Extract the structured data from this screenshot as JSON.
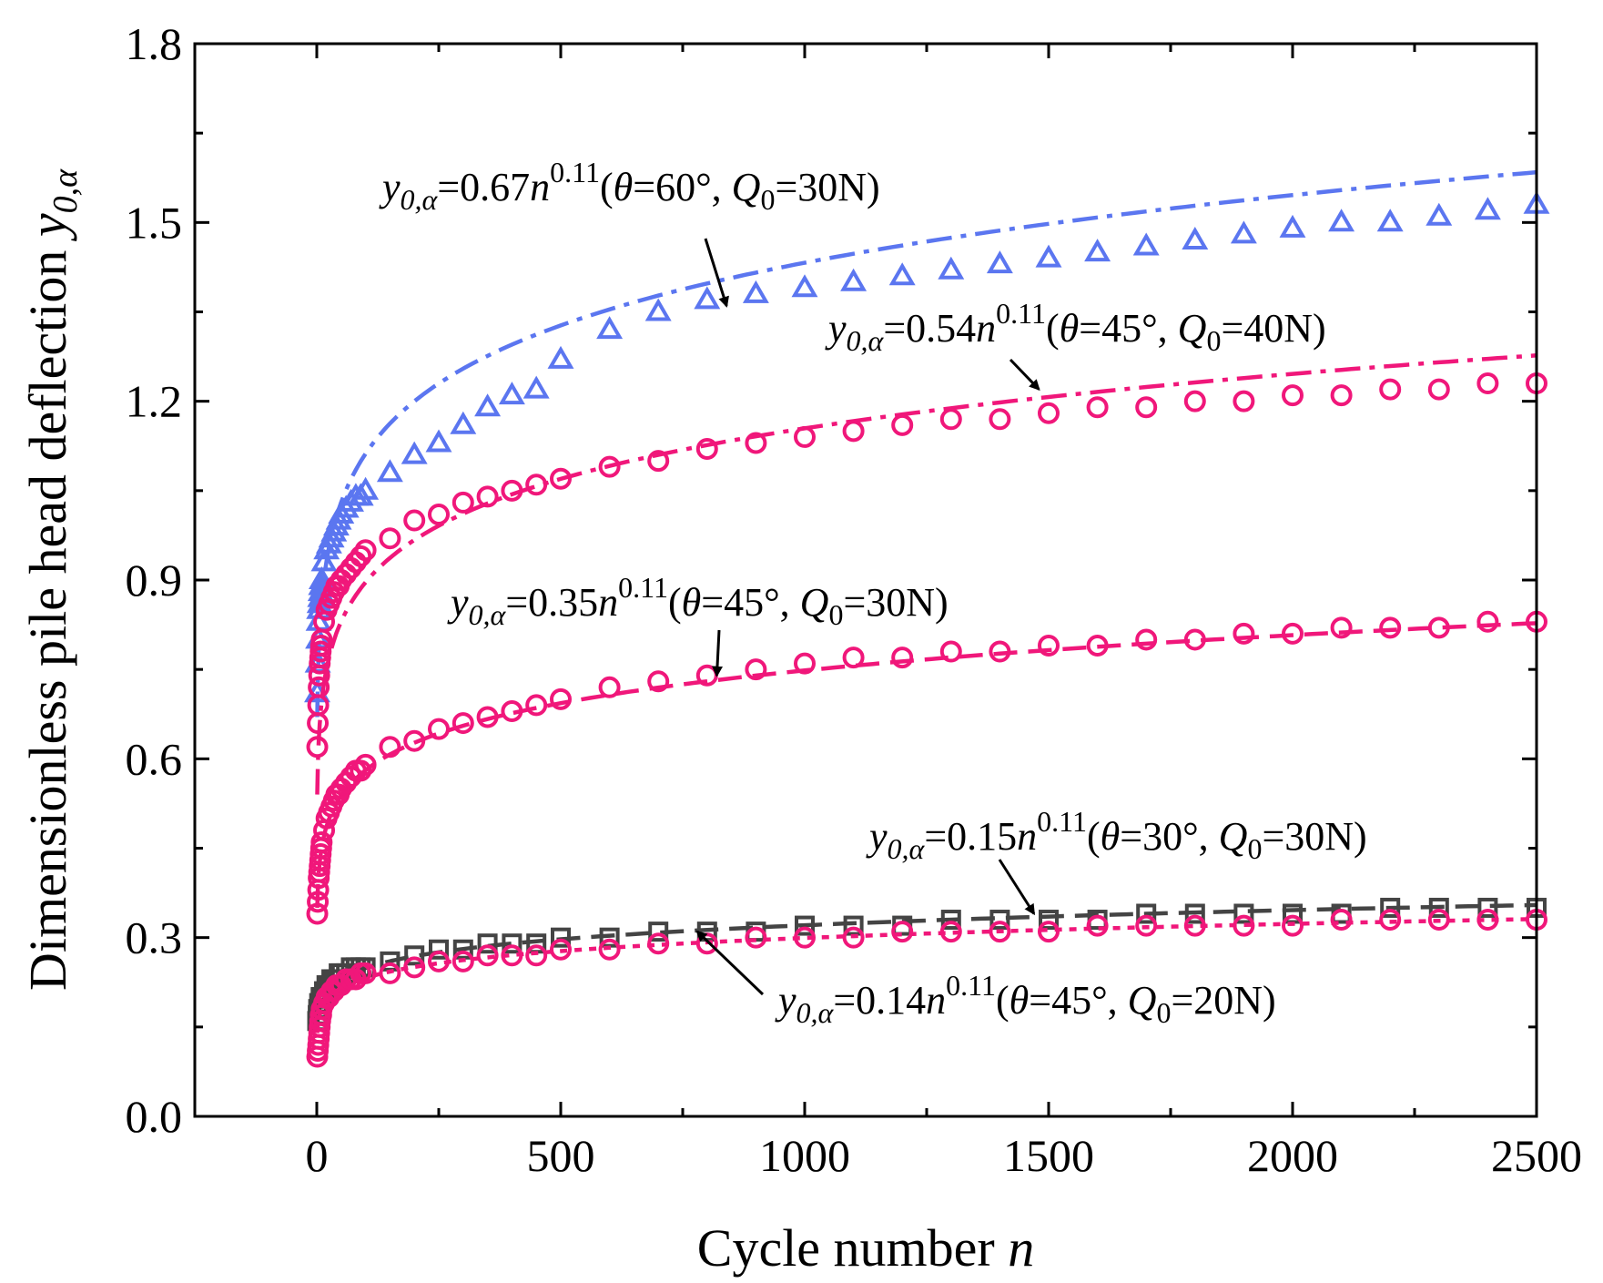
{
  "chart_data": {
    "type": "scatter",
    "title": "",
    "xlabel_text": "Cycle number ",
    "xlabel_var": "n",
    "ylabel_text": "Dimensionless pile head deflection ",
    "ylabel_var": "y",
    "ylabel_sub": "0,α",
    "xlim": [
      -250,
      2500
    ],
    "ylim": [
      0.0,
      1.8
    ],
    "xticks": [
      0,
      500,
      1000,
      1500,
      2000,
      2500
    ],
    "xtick_labels": [
      "0",
      "500",
      "1000",
      "1500",
      "2000",
      "2500"
    ],
    "yticks": [
      0.0,
      0.3,
      0.6,
      0.9,
      1.2,
      1.5,
      1.8
    ],
    "ytick_labels": [
      "0.0",
      "0.3",
      "0.6",
      "0.9",
      "1.2",
      "1.5",
      "1.8"
    ],
    "grid": false,
    "x": [
      1,
      2,
      3,
      4,
      5,
      6,
      7,
      8,
      9,
      10,
      15,
      20,
      25,
      30,
      35,
      40,
      45,
      50,
      60,
      70,
      80,
      90,
      100,
      150,
      200,
      250,
      300,
      350,
      400,
      450,
      500,
      600,
      700,
      800,
      900,
      1000,
      1100,
      1200,
      1300,
      1400,
      1500,
      1600,
      1700,
      1800,
      1900,
      2000,
      2100,
      2200,
      2300,
      2400,
      2500
    ],
    "series": [
      {
        "name": "θ=60°, Q0=30N",
        "color": "#5b76f0",
        "marker": "triangle",
        "line_style": "dash-dot",
        "fit": {
          "a": 0.67,
          "b": 0.11
        },
        "values": [
          0.71,
          0.76,
          0.8,
          0.83,
          0.85,
          0.86,
          0.87,
          0.88,
          0.89,
          0.9,
          0.93,
          0.95,
          0.96,
          0.97,
          0.98,
          0.99,
          1.0,
          1.01,
          1.02,
          1.03,
          1.04,
          1.04,
          1.05,
          1.08,
          1.11,
          1.13,
          1.16,
          1.19,
          1.21,
          1.22,
          1.27,
          1.32,
          1.35,
          1.37,
          1.38,
          1.39,
          1.4,
          1.41,
          1.42,
          1.43,
          1.44,
          1.45,
          1.46,
          1.47,
          1.48,
          1.49,
          1.5,
          1.5,
          1.51,
          1.52,
          1.53
        ]
      },
      {
        "name": "θ=45°, Q0=40N",
        "color": "#f0177a",
        "marker": "circle",
        "line_style": "dash-dot",
        "fit": {
          "a": 0.54,
          "b": 0.11
        },
        "values": [
          0.62,
          0.66,
          0.69,
          0.72,
          0.74,
          0.76,
          0.77,
          0.78,
          0.79,
          0.8,
          0.83,
          0.85,
          0.86,
          0.87,
          0.88,
          0.89,
          0.89,
          0.9,
          0.91,
          0.92,
          0.93,
          0.94,
          0.95,
          0.97,
          1.0,
          1.01,
          1.03,
          1.04,
          1.05,
          1.06,
          1.07,
          1.09,
          1.1,
          1.12,
          1.13,
          1.14,
          1.15,
          1.16,
          1.17,
          1.17,
          1.18,
          1.19,
          1.19,
          1.2,
          1.2,
          1.21,
          1.21,
          1.22,
          1.22,
          1.23,
          1.23
        ]
      },
      {
        "name": "θ=45°, Q0=30N",
        "color": "#f0177a",
        "marker": "circle",
        "line_style": "dash",
        "fit": {
          "a": 0.35,
          "b": 0.11
        },
        "values": [
          0.34,
          0.36,
          0.38,
          0.4,
          0.41,
          0.42,
          0.43,
          0.44,
          0.45,
          0.46,
          0.48,
          0.5,
          0.51,
          0.52,
          0.53,
          0.54,
          0.54,
          0.55,
          0.56,
          0.57,
          0.58,
          0.58,
          0.59,
          0.62,
          0.63,
          0.65,
          0.66,
          0.67,
          0.68,
          0.69,
          0.7,
          0.72,
          0.73,
          0.74,
          0.75,
          0.76,
          0.77,
          0.77,
          0.78,
          0.78,
          0.79,
          0.79,
          0.8,
          0.8,
          0.81,
          0.81,
          0.82,
          0.82,
          0.82,
          0.83,
          0.83
        ]
      },
      {
        "name": "θ=30°, Q0=30N",
        "color": "#444444",
        "marker": "square",
        "line_style": "dash",
        "fit": {
          "a": 0.15,
          "b": 0.11
        },
        "values": [
          0.16,
          0.17,
          0.18,
          0.18,
          0.19,
          0.19,
          0.19,
          0.2,
          0.2,
          0.2,
          0.21,
          0.22,
          0.22,
          0.23,
          0.23,
          0.23,
          0.24,
          0.24,
          0.24,
          0.25,
          0.25,
          0.25,
          0.25,
          0.26,
          0.27,
          0.28,
          0.28,
          0.29,
          0.29,
          0.29,
          0.3,
          0.3,
          0.31,
          0.31,
          0.31,
          0.32,
          0.32,
          0.32,
          0.33,
          0.33,
          0.33,
          0.33,
          0.34,
          0.34,
          0.34,
          0.34,
          0.34,
          0.35,
          0.35,
          0.35,
          0.35
        ]
      },
      {
        "name": "θ=45°, Q0=20N",
        "color": "#f0177a",
        "marker": "circle",
        "line_style": "dot",
        "fit": {
          "a": 0.14,
          "b": 0.11
        },
        "values": [
          0.1,
          0.11,
          0.12,
          0.13,
          0.14,
          0.15,
          0.16,
          0.17,
          0.17,
          0.18,
          0.19,
          0.2,
          0.2,
          0.21,
          0.21,
          0.22,
          0.22,
          0.22,
          0.23,
          0.23,
          0.23,
          0.24,
          0.24,
          0.24,
          0.25,
          0.26,
          0.26,
          0.27,
          0.27,
          0.27,
          0.28,
          0.28,
          0.29,
          0.29,
          0.3,
          0.3,
          0.3,
          0.31,
          0.31,
          0.31,
          0.31,
          0.32,
          0.32,
          0.32,
          0.32,
          0.32,
          0.33,
          0.33,
          0.33,
          0.33,
          0.33
        ]
      }
    ],
    "annotations": [
      {
        "prefix": "y",
        "sub": "0,α",
        "coef": "=0.67",
        "var": "n",
        "exp": "0.11",
        "open": "(",
        "theta": "θ",
        "angle": "=60°, ",
        "q": "Q",
        "qsub": "0",
        "load": "=30N)",
        "arrow_to": [
          840,
          1.36
        ]
      },
      {
        "prefix": "y",
        "sub": "0,α",
        "coef": "=0.54",
        "var": "n",
        "exp": "0.11",
        "open": "(",
        "theta": "θ",
        "angle": "=45°, ",
        "q": "Q",
        "qsub": "0",
        "load": "=40N)",
        "arrow_to": [
          1480,
          1.22
        ]
      },
      {
        "prefix": "y",
        "sub": "0,α",
        "coef": "=0.35",
        "var": "n",
        "exp": "0.11",
        "open": "(",
        "theta": "θ",
        "angle": "=45°, ",
        "q": "Q",
        "qsub": "0",
        "load": "=30N)",
        "arrow_to": [
          820,
          0.74
        ]
      },
      {
        "prefix": "y",
        "sub": "0,α",
        "coef": "=0.15",
        "var": "n",
        "exp": "0.11",
        "open": "(",
        "theta": "θ",
        "angle": "=30°, ",
        "q": "Q",
        "qsub": "0",
        "load": "=30N)",
        "arrow_to": [
          1470,
          0.34
        ]
      },
      {
        "prefix": "y",
        "sub": "0,α",
        "coef": "=0.14",
        "var": "n",
        "exp": "0.11",
        "open": "(",
        "theta": "θ",
        "angle": "=45°, ",
        "q": "Q",
        "qsub": "0",
        "load": "=20N)",
        "arrow_to": [
          780,
          0.31
        ]
      }
    ]
  }
}
